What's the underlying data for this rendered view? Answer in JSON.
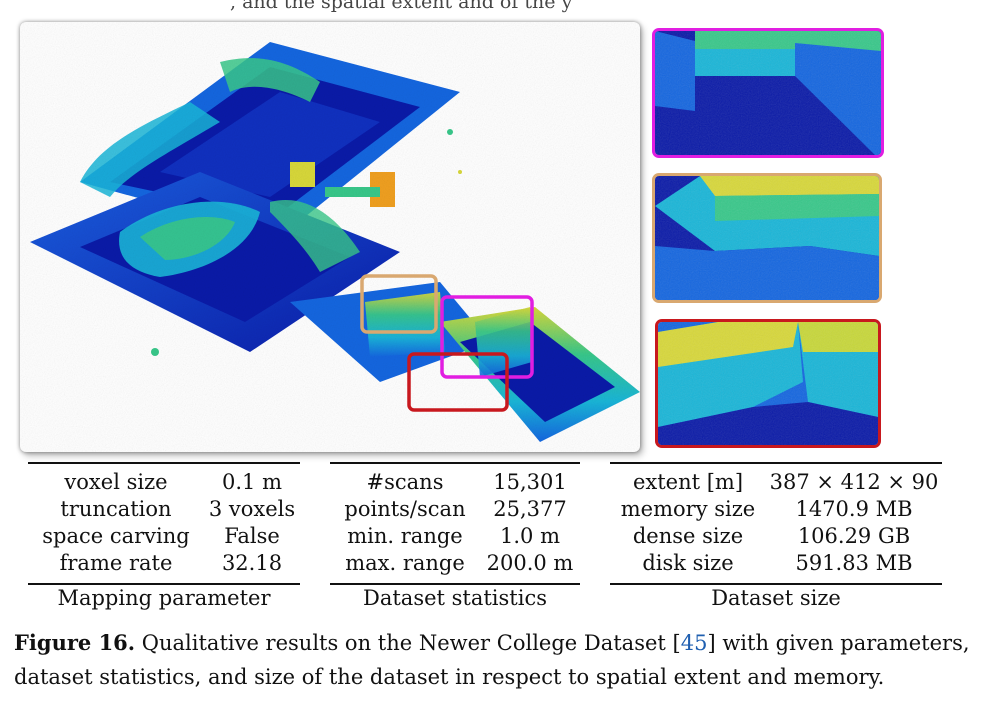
{
  "header_fragment": ", and the              spatial extent and              of the          y",
  "panels": {
    "main_image": "point-cloud-overview",
    "insets": [
      "magenta-inset",
      "tan-inset",
      "red-inset"
    ],
    "colors": {
      "magenta": "#e11ee1",
      "tan": "#d9a870",
      "red": "#c8181e",
      "colormap": [
        "#0a1aa8",
        "#1466e0",
        "#19b6d8",
        "#38c88a",
        "#c8d83a",
        "#f0a020",
        "#d83a10"
      ]
    }
  },
  "tables": [
    {
      "caption": "Mapping parameter",
      "rows": [
        [
          "voxel size",
          "0.1 m"
        ],
        [
          "truncation",
          "3 voxels"
        ],
        [
          "space carving",
          "False"
        ],
        [
          "frame rate",
          "32.18"
        ]
      ]
    },
    {
      "caption": "Dataset statistics",
      "rows": [
        [
          "#scans",
          "15,301"
        ],
        [
          "points/scan",
          "25,377"
        ],
        [
          "min. range",
          "1.0 m"
        ],
        [
          "max. range",
          "200.0 m"
        ]
      ]
    },
    {
      "caption": "Dataset size",
      "rows": [
        [
          "extent [m]",
          "387 × 412 × 90"
        ],
        [
          "memory size",
          "1470.9 MB"
        ],
        [
          "dense size",
          "106.29 GB"
        ],
        [
          "disk size",
          "591.83 MB"
        ]
      ]
    }
  ],
  "figure_caption": {
    "label": "Figure 16.",
    "text_before": " Qualitative results on the Newer College Dataset [",
    "citation": "45",
    "text_after": "] with given parameters, dataset statistics, and size of the dataset in respect to spatial extent and memory."
  }
}
